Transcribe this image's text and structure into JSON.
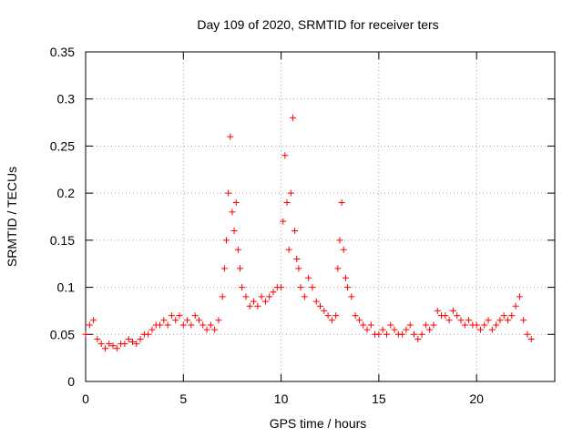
{
  "chart_data": {
    "type": "scatter",
    "title": "Day 109 of 2020, SRMTID for receiver ters",
    "xlabel": "GPS time / hours",
    "ylabel": "SRMTID / TECUs",
    "xlim": [
      0,
      24
    ],
    "ylim": [
      0,
      0.35
    ],
    "xticks": [
      0,
      5,
      10,
      15,
      20
    ],
    "xtick_labels": [
      "0",
      "5",
      "10",
      "15",
      "20"
    ],
    "yticks": [
      0,
      0.05,
      0.1,
      0.15,
      0.2,
      0.25,
      0.3,
      0.35
    ],
    "ytick_labels": [
      "0",
      "0.05",
      "0.1",
      "0.15",
      "0.2",
      "0.25",
      "0.3",
      "0.35"
    ],
    "grid": true,
    "marker": "+",
    "color": "#ff0000",
    "series": [
      {
        "name": "SRMTID",
        "x": [
          0.0,
          0.2,
          0.4,
          0.6,
          0.8,
          1.0,
          1.2,
          1.4,
          1.6,
          1.8,
          2.0,
          2.2,
          2.4,
          2.6,
          2.8,
          3.0,
          3.2,
          3.4,
          3.6,
          3.8,
          4.0,
          4.2,
          4.4,
          4.6,
          4.8,
          5.0,
          5.2,
          5.4,
          5.6,
          5.8,
          6.0,
          6.2,
          6.4,
          6.6,
          6.8,
          7.0,
          7.1,
          7.2,
          7.3,
          7.4,
          7.5,
          7.6,
          7.7,
          7.8,
          7.9,
          8.0,
          8.2,
          8.4,
          8.6,
          8.8,
          9.0,
          9.2,
          9.4,
          9.6,
          9.8,
          10.0,
          10.1,
          10.2,
          10.3,
          10.4,
          10.5,
          10.6,
          10.7,
          10.8,
          10.9,
          11.0,
          11.2,
          11.4,
          11.6,
          11.8,
          12.0,
          12.2,
          12.4,
          12.6,
          12.8,
          12.9,
          13.0,
          13.1,
          13.2,
          13.3,
          13.4,
          13.6,
          13.8,
          14.0,
          14.2,
          14.4,
          14.6,
          14.8,
          15.0,
          15.2,
          15.4,
          15.6,
          15.8,
          16.0,
          16.2,
          16.4,
          16.6,
          16.8,
          17.0,
          17.2,
          17.4,
          17.6,
          17.8,
          18.0,
          18.2,
          18.4,
          18.6,
          18.8,
          19.0,
          19.2,
          19.4,
          19.6,
          19.8,
          20.0,
          20.2,
          20.4,
          20.6,
          20.8,
          21.0,
          21.2,
          21.4,
          21.6,
          21.8,
          22.0,
          22.2,
          22.4,
          22.6,
          22.8
        ],
        "y": [
          0.05,
          0.06,
          0.065,
          0.045,
          0.04,
          0.035,
          0.04,
          0.038,
          0.035,
          0.04,
          0.04,
          0.045,
          0.042,
          0.04,
          0.045,
          0.05,
          0.05,
          0.055,
          0.06,
          0.06,
          0.065,
          0.06,
          0.07,
          0.065,
          0.07,
          0.06,
          0.065,
          0.06,
          0.07,
          0.065,
          0.06,
          0.055,
          0.06,
          0.055,
          0.065,
          0.09,
          0.12,
          0.15,
          0.2,
          0.26,
          0.18,
          0.16,
          0.19,
          0.14,
          0.12,
          0.1,
          0.09,
          0.08,
          0.085,
          0.08,
          0.09,
          0.085,
          0.09,
          0.095,
          0.1,
          0.1,
          0.17,
          0.24,
          0.19,
          0.14,
          0.2,
          0.28,
          0.16,
          0.13,
          0.12,
          0.1,
          0.09,
          0.11,
          0.1,
          0.085,
          0.08,
          0.075,
          0.07,
          0.065,
          0.07,
          0.12,
          0.15,
          0.19,
          0.14,
          0.11,
          0.1,
          0.09,
          0.07,
          0.065,
          0.06,
          0.055,
          0.06,
          0.05,
          0.05,
          0.055,
          0.05,
          0.06,
          0.055,
          0.05,
          0.05,
          0.055,
          0.06,
          0.05,
          0.045,
          0.05,
          0.06,
          0.055,
          0.06,
          0.075,
          0.07,
          0.07,
          0.065,
          0.075,
          0.07,
          0.065,
          0.06,
          0.065,
          0.06,
          0.06,
          0.055,
          0.06,
          0.065,
          0.055,
          0.06,
          0.065,
          0.07,
          0.065,
          0.07,
          0.08,
          0.09,
          0.065,
          0.05,
          0.045
        ]
      }
    ]
  }
}
